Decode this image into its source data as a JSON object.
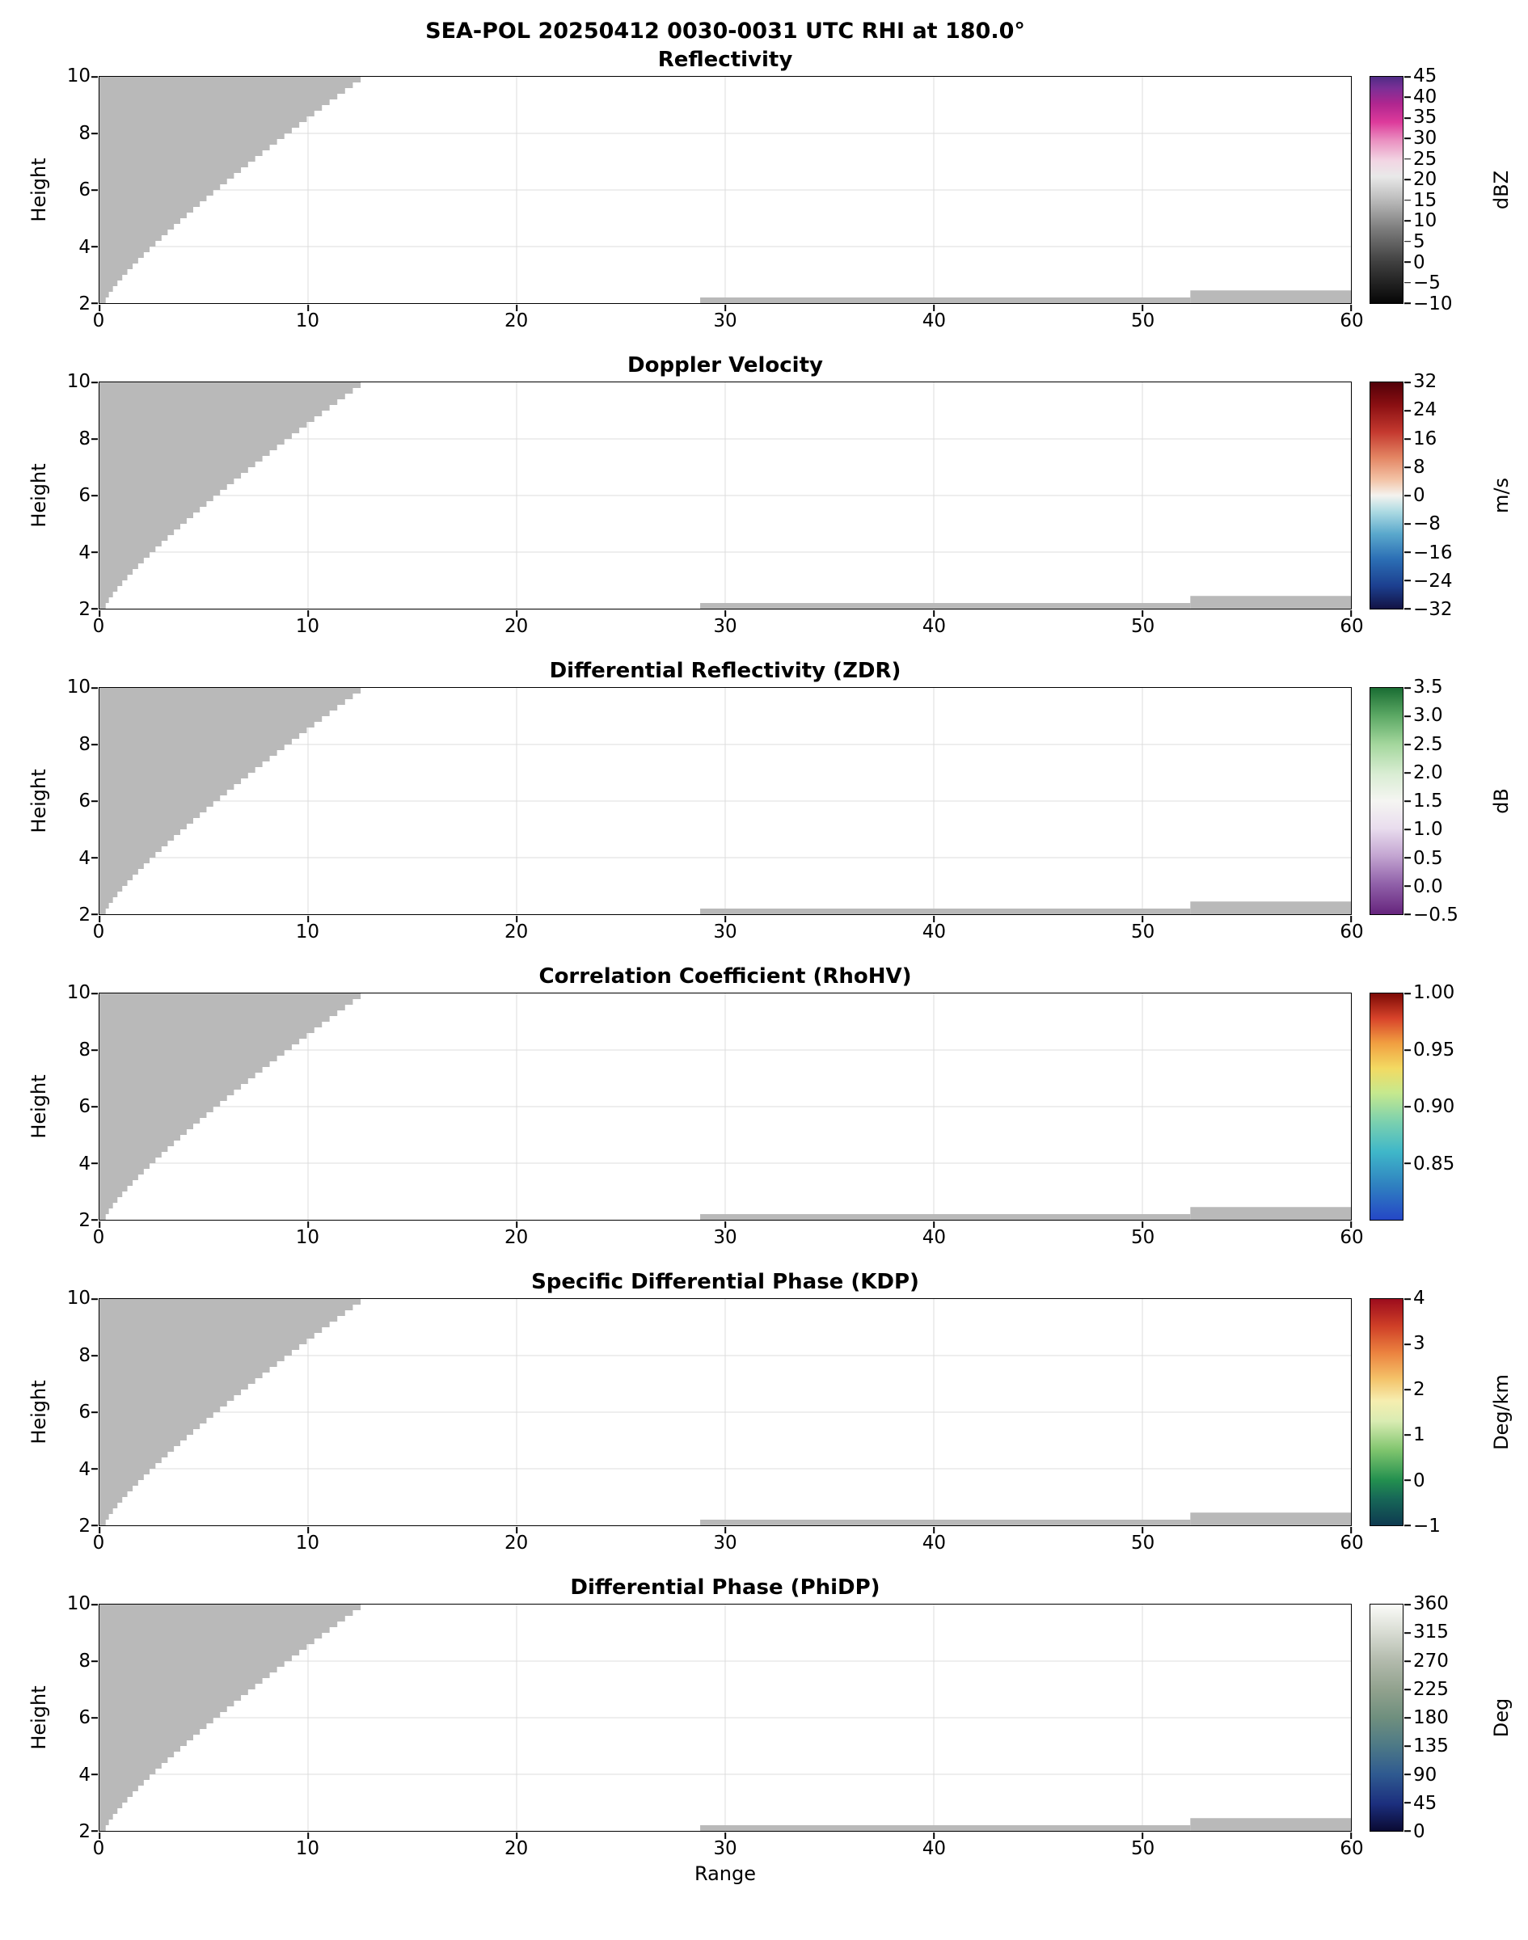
{
  "title": "SEA-POL 20250412 0030-0031 UTC RHI at 180.0°",
  "axes": {
    "xlabel": "Range",
    "ylabel": "Height",
    "xlim": [
      0,
      60
    ],
    "ylim": [
      2,
      10
    ],
    "x_ticks": [
      0,
      10,
      20,
      30,
      40,
      50,
      60
    ],
    "y_ticks": [
      2,
      4,
      6,
      8,
      10
    ],
    "grid": true
  },
  "chart_data": {
    "type": "heatmap",
    "description": "Six stacked radar RHI cross-section panels sharing identical Range (0-60) vs Height (2-10) axes. No colored echo data is present; every panel shows only a gray masked/no-data wedge rising from the radar at left (reaching x≈13 at height 10) plus thin gray strips just above height 2 between ranges ~29-60.",
    "grid_color": "#dcdcdc",
    "panels": [
      {
        "title": "Reflectivity",
        "unit": "dBZ",
        "cbar_min": -10,
        "cbar_max": 45,
        "cbar_ticks": [
          {
            "label": "45",
            "value": 45
          },
          {
            "label": "40",
            "value": 40
          },
          {
            "label": "35",
            "value": 35
          },
          {
            "label": "30",
            "value": 30
          },
          {
            "label": "25",
            "value": 25
          },
          {
            "label": "20",
            "value": 20
          },
          {
            "label": "15",
            "value": 15
          },
          {
            "label": "10",
            "value": 10
          },
          {
            "label": "5",
            "value": 5
          },
          {
            "label": "0",
            "value": 0
          },
          {
            "label": "−5",
            "value": -5
          },
          {
            "label": "−10",
            "value": -10
          }
        ],
        "cbar_stops": [
          {
            "p": 0.0,
            "c": "#060606"
          },
          {
            "p": 0.18,
            "c": "#3f3f3f"
          },
          {
            "p": 0.33,
            "c": "#7d7d7d"
          },
          {
            "p": 0.46,
            "c": "#bdbdbd"
          },
          {
            "p": 0.56,
            "c": "#e9e9e9"
          },
          {
            "p": 0.63,
            "c": "#f2d5e3"
          },
          {
            "p": 0.72,
            "c": "#ea8fc0"
          },
          {
            "p": 0.8,
            "c": "#dd3a9b"
          },
          {
            "p": 0.88,
            "c": "#b0268f"
          },
          {
            "p": 0.95,
            "c": "#7b2f96"
          },
          {
            "p": 1.0,
            "c": "#4f2c85"
          }
        ]
      },
      {
        "title": "Doppler Velocity",
        "unit": "m/s",
        "cbar_min": -32,
        "cbar_max": 32,
        "cbar_ticks": [
          {
            "label": "32",
            "value": 32
          },
          {
            "label": "24",
            "value": 24
          },
          {
            "label": "16",
            "value": 16
          },
          {
            "label": "8",
            "value": 8
          },
          {
            "label": "0",
            "value": 0
          },
          {
            "label": "−8",
            "value": -8
          },
          {
            "label": "−16",
            "value": -16
          },
          {
            "label": "−24",
            "value": -24
          },
          {
            "label": "−32",
            "value": -32
          }
        ],
        "cbar_stops": [
          {
            "p": 0.0,
            "c": "#131344"
          },
          {
            "p": 0.1,
            "c": "#1c3f8f"
          },
          {
            "p": 0.22,
            "c": "#2c6fb5"
          },
          {
            "p": 0.33,
            "c": "#5aa8cc"
          },
          {
            "p": 0.43,
            "c": "#aedbe3"
          },
          {
            "p": 0.5,
            "c": "#f4f3ef"
          },
          {
            "p": 0.57,
            "c": "#f3c3a6"
          },
          {
            "p": 0.67,
            "c": "#e38462"
          },
          {
            "p": 0.78,
            "c": "#c4392f"
          },
          {
            "p": 0.9,
            "c": "#8a0f12"
          },
          {
            "p": 1.0,
            "c": "#520008"
          }
        ]
      },
      {
        "title": "Differential Reflectivity (ZDR)",
        "unit": "dB",
        "cbar_min": -0.5,
        "cbar_max": 3.5,
        "cbar_ticks": [
          {
            "label": "3.5",
            "value": 3.5
          },
          {
            "label": "3.0",
            "value": 3.0
          },
          {
            "label": "2.5",
            "value": 2.5
          },
          {
            "label": "2.0",
            "value": 2.0
          },
          {
            "label": "1.5",
            "value": 1.5
          },
          {
            "label": "1.0",
            "value": 1.0
          },
          {
            "label": "0.5",
            "value": 0.5
          },
          {
            "label": "0.0",
            "value": 0.0
          },
          {
            "label": "−0.5",
            "value": -0.5
          }
        ],
        "cbar_stops": [
          {
            "p": 0.0,
            "c": "#66257d"
          },
          {
            "p": 0.13,
            "c": "#8f5fa8"
          },
          {
            "p": 0.26,
            "c": "#c4a6d2"
          },
          {
            "p": 0.38,
            "c": "#e9ddee"
          },
          {
            "p": 0.5,
            "c": "#f5f5f2"
          },
          {
            "p": 0.62,
            "c": "#d9edd3"
          },
          {
            "p": 0.75,
            "c": "#a4d79d"
          },
          {
            "p": 0.88,
            "c": "#5aa763"
          },
          {
            "p": 1.0,
            "c": "#1a6d33"
          }
        ]
      },
      {
        "title": "Correlation Coefficient (RhoHV)",
        "unit": "",
        "cbar_min": 0.8,
        "cbar_max": 1.0,
        "cbar_ticks": [
          {
            "label": "1.00",
            "value": 1.0
          },
          {
            "label": "0.95",
            "value": 0.95
          },
          {
            "label": "0.90",
            "value": 0.9
          },
          {
            "label": "0.85",
            "value": 0.85
          }
        ],
        "cbar_stops": [
          {
            "p": 0.0,
            "c": "#2547c6"
          },
          {
            "p": 0.15,
            "c": "#2f80c0"
          },
          {
            "p": 0.3,
            "c": "#3fb7c9"
          },
          {
            "p": 0.44,
            "c": "#7fd2ad"
          },
          {
            "p": 0.56,
            "c": "#c6e98e"
          },
          {
            "p": 0.67,
            "c": "#f3da62"
          },
          {
            "p": 0.78,
            "c": "#f19f41"
          },
          {
            "p": 0.89,
            "c": "#d8432a"
          },
          {
            "p": 1.0,
            "c": "#7d0a06"
          }
        ]
      },
      {
        "title": "Specific Differential Phase (KDP)",
        "unit": "Deg/km",
        "cbar_min": -1,
        "cbar_max": 4,
        "cbar_ticks": [
          {
            "label": "4",
            "value": 4
          },
          {
            "label": "3",
            "value": 3
          },
          {
            "label": "2",
            "value": 2
          },
          {
            "label": "1",
            "value": 1
          },
          {
            "label": "0",
            "value": 0
          },
          {
            "label": "−1",
            "value": -1
          }
        ],
        "cbar_stops": [
          {
            "p": 0.0,
            "c": "#0e3a50"
          },
          {
            "p": 0.12,
            "c": "#176857"
          },
          {
            "p": 0.2,
            "c": "#23904f"
          },
          {
            "p": 0.33,
            "c": "#7ec46d"
          },
          {
            "p": 0.46,
            "c": "#d9ecb2"
          },
          {
            "p": 0.55,
            "c": "#f6eeb0"
          },
          {
            "p": 0.65,
            "c": "#f4c168"
          },
          {
            "p": 0.76,
            "c": "#ec8440"
          },
          {
            "p": 0.88,
            "c": "#cf3f27"
          },
          {
            "p": 1.0,
            "c": "#9c0c1d"
          }
        ]
      },
      {
        "title": "Differential Phase (PhiDP)",
        "unit": "Deg",
        "cbar_min": 0,
        "cbar_max": 360,
        "cbar_ticks": [
          {
            "label": "360",
            "value": 360
          },
          {
            "label": "315",
            "value": 315
          },
          {
            "label": "270",
            "value": 270
          },
          {
            "label": "225",
            "value": 225
          },
          {
            "label": "180",
            "value": 180
          },
          {
            "label": "135",
            "value": 135
          },
          {
            "label": "90",
            "value": 90
          },
          {
            "label": "45",
            "value": 45
          },
          {
            "label": "0",
            "value": 0
          }
        ],
        "cbar_stops": [
          {
            "p": 0.0,
            "c": "#0a0a33"
          },
          {
            "p": 0.12,
            "c": "#1c2f7e"
          },
          {
            "p": 0.25,
            "c": "#2f5a90"
          },
          {
            "p": 0.38,
            "c": "#4e7a86"
          },
          {
            "p": 0.5,
            "c": "#6f8f7e"
          },
          {
            "p": 0.62,
            "c": "#90a18d"
          },
          {
            "p": 0.75,
            "c": "#b2baac"
          },
          {
            "p": 0.88,
            "c": "#d9ddd4"
          },
          {
            "p": 1.0,
            "c": "#fbfbf8"
          }
        ]
      }
    ],
    "masked_regions": {
      "color": "#b9b9b9",
      "wedge": {
        "x_at_h2": 0.3,
        "x_at_h10": 12.9,
        "h_min": 2,
        "h_max": 10,
        "exponent": 1.2,
        "step": 0.2
      },
      "strips": [
        {
          "x1": 28.8,
          "x2": 52.3,
          "h1": 2.0,
          "h2": 2.2
        },
        {
          "x1": 52.3,
          "x2": 60.0,
          "h1": 2.0,
          "h2": 2.45
        }
      ]
    }
  }
}
